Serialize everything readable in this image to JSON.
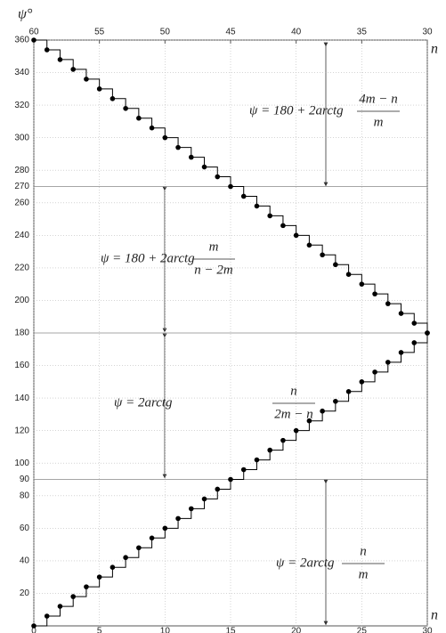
{
  "chart_data": {
    "type": "line",
    "y_label": "ψ°",
    "x_label": "n",
    "x2_label": "n",
    "xlim": [
      0,
      30
    ],
    "xticks": [
      0,
      5,
      10,
      15,
      20,
      25,
      30
    ],
    "x2lim": [
      60,
      30
    ],
    "x2ticks": [
      60,
      55,
      50,
      45,
      40,
      35,
      30
    ],
    "ylim": [
      0,
      360
    ],
    "yticks": [
      20,
      40,
      60,
      80,
      90,
      100,
      120,
      140,
      160,
      180,
      200,
      220,
      240,
      260,
      270,
      280,
      300,
      320,
      340,
      360
    ],
    "reference_lines": [
      90,
      180,
      270
    ],
    "reference_color": "#e00000",
    "grid": true,
    "step": true,
    "x": [
      0,
      1,
      2,
      3,
      4,
      5,
      6,
      7,
      8,
      9,
      10,
      11,
      12,
      13,
      14,
      15,
      16,
      17,
      18,
      19,
      20,
      21,
      22,
      23,
      24,
      25,
      26,
      27,
      28,
      29,
      30
    ],
    "series": [
      {
        "color": "#000000",
        "values": [
          0,
          6,
          12,
          18,
          24,
          30,
          36,
          42,
          48,
          54,
          60,
          66,
          72,
          78,
          84,
          90,
          96,
          102,
          108,
          114,
          120,
          126,
          132,
          138,
          144,
          150,
          156,
          162,
          168,
          174,
          180
        ]
      },
      {
        "color": "#000000",
        "values": [
          360,
          354,
          348,
          342,
          336,
          330,
          324,
          318,
          312,
          306,
          300,
          294,
          288,
          282,
          276,
          270,
          264,
          258,
          252,
          246,
          240,
          234,
          228,
          222,
          216,
          210,
          204,
          198,
          192,
          186,
          180
        ]
      }
    ],
    "annotations": [
      {
        "prefix": "ψ = 180 + 2arctg",
        "numerator": "4m − n",
        "denominator": "m"
      },
      {
        "prefix": "ψ = 180 + 2arctg",
        "numerator": "m",
        "denominator": "n − 2m"
      },
      {
        "prefix": "ψ = 2arctg",
        "numerator": "n",
        "denominator": "2m − n"
      },
      {
        "prefix": "ψ = 2arctg",
        "numerator": "n",
        "denominator": "m"
      }
    ]
  }
}
